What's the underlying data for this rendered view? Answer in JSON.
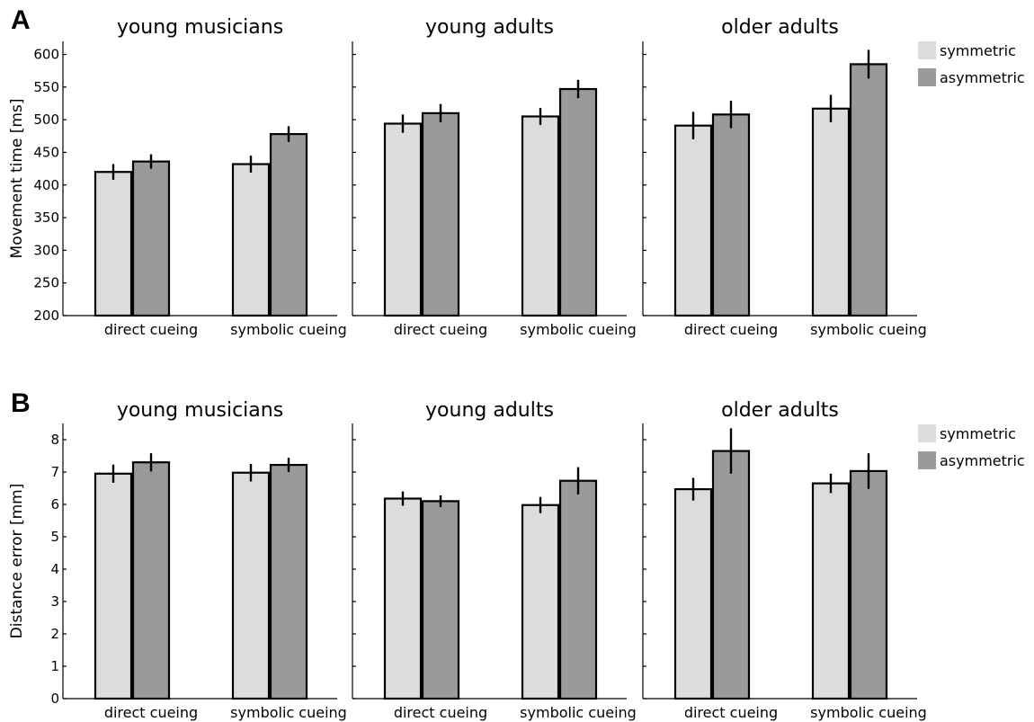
{
  "chart_data": [
    {
      "panel": "A",
      "type": "bar",
      "ylabel": "Movement time [ms]",
      "ylim": [
        200,
        620
      ],
      "yticks": [
        200,
        250,
        300,
        350,
        400,
        450,
        500,
        550,
        600
      ],
      "categories": [
        "direct cueing",
        "symbolic cueing"
      ],
      "legend": {
        "placement": "top-right",
        "entries": [
          "symmetric",
          "asymmetric"
        ]
      },
      "colors": {
        "symmetric": "#dcdcdc",
        "asymmetric": "#9a9a9a"
      },
      "groups": [
        {
          "title": "young musicians",
          "series": [
            {
              "name": "symmetric",
              "values": [
                420,
                432
              ],
              "errors": [
                12,
                13
              ]
            },
            {
              "name": "asymmetric",
              "values": [
                436,
                478
              ],
              "errors": [
                11,
                12
              ]
            }
          ]
        },
        {
          "title": "young adults",
          "series": [
            {
              "name": "symmetric",
              "values": [
                494,
                505
              ],
              "errors": [
                14,
                13
              ]
            },
            {
              "name": "asymmetric",
              "values": [
                510,
                547
              ],
              "errors": [
                14,
                14
              ]
            }
          ]
        },
        {
          "title": "older adults",
          "series": [
            {
              "name": "symmetric",
              "values": [
                491,
                517
              ],
              "errors": [
                21,
                21
              ]
            },
            {
              "name": "asymmetric",
              "values": [
                508,
                585
              ],
              "errors": [
                21,
                22
              ]
            }
          ]
        }
      ]
    },
    {
      "panel": "B",
      "type": "bar",
      "ylabel": "Distance error [mm]",
      "ylim": [
        0,
        8.5
      ],
      "yticks": [
        0,
        1,
        2,
        3,
        4,
        5,
        6,
        7,
        8
      ],
      "categories": [
        "direct cueing",
        "symbolic cueing"
      ],
      "legend": {
        "placement": "top-right",
        "entries": [
          "symmetric",
          "asymmetric"
        ]
      },
      "colors": {
        "symmetric": "#dcdcdc",
        "asymmetric": "#9a9a9a"
      },
      "groups": [
        {
          "title": "young musicians",
          "series": [
            {
              "name": "symmetric",
              "values": [
                6.95,
                6.98
              ],
              "errors": [
                0.28,
                0.27
              ]
            },
            {
              "name": "asymmetric",
              "values": [
                7.3,
                7.22
              ],
              "errors": [
                0.28,
                0.22
              ]
            }
          ]
        },
        {
          "title": "young adults",
          "series": [
            {
              "name": "symmetric",
              "values": [
                6.18,
                5.98
              ],
              "errors": [
                0.22,
                0.25
              ]
            },
            {
              "name": "asymmetric",
              "values": [
                6.1,
                6.73
              ],
              "errors": [
                0.18,
                0.42
              ]
            }
          ]
        },
        {
          "title": "older adults",
          "series": [
            {
              "name": "symmetric",
              "values": [
                6.47,
                6.65
              ],
              "errors": [
                0.35,
                0.3
              ]
            },
            {
              "name": "asymmetric",
              "values": [
                7.65,
                7.03
              ],
              "errors": [
                0.7,
                0.55
              ]
            }
          ]
        }
      ]
    }
  ]
}
